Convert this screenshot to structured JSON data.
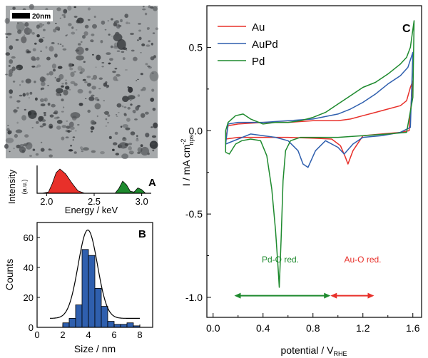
{
  "figure": {
    "tem_image": {
      "scale_bar_label": "20nm"
    },
    "panel_labels": {
      "a": "A",
      "b": "B",
      "c": "C"
    }
  },
  "chart_data": [
    {
      "type": "area",
      "panel": "A",
      "xlabel": "Energy / keV",
      "ylabel": "Intensity",
      "ylabel_unit": "(a.u.)",
      "xlim": [
        1.9,
        3.1
      ],
      "xticks": [
        "2.0",
        "2.5",
        "3.0"
      ],
      "colors": [
        "#e8302a",
        "#1e8a2e"
      ],
      "series": [
        {
          "values": [
            [
              1.95,
              0.0
            ],
            [
              2.02,
              0.05
            ],
            [
              2.06,
              0.4
            ],
            [
              2.1,
              0.85
            ],
            [
              2.14,
              1.0
            ],
            [
              2.2,
              0.8
            ],
            [
              2.27,
              0.4
            ],
            [
              2.33,
              0.1
            ],
            [
              2.4,
              0.0
            ]
          ]
        },
        {
          "values": [
            [
              2.72,
              0.0
            ],
            [
              2.76,
              0.2
            ],
            [
              2.8,
              0.5
            ],
            [
              2.84,
              0.35
            ],
            [
              2.88,
              0.08
            ],
            [
              2.92,
              0.05
            ],
            [
              2.96,
              0.22
            ],
            [
              3.0,
              0.15
            ],
            [
              3.04,
              0.0
            ]
          ]
        }
      ]
    },
    {
      "type": "bar",
      "panel": "B",
      "xlabel": "Size / nm",
      "ylabel": "Counts",
      "xlim": [
        0,
        9
      ],
      "ylim": [
        0,
        70
      ],
      "xticks": [
        "0",
        "2",
        "4",
        "6",
        "8"
      ],
      "yticks": [
        "0",
        "20",
        "40",
        "60"
      ],
      "bar_color": "#2f5fae",
      "bins": [
        2.25,
        2.75,
        3.25,
        3.75,
        4.25,
        4.75,
        5.25,
        5.75,
        6.25,
        6.75,
        7.25,
        7.75
      ],
      "values": [
        3,
        6,
        15,
        52,
        48,
        26,
        14,
        4,
        2,
        2,
        3,
        1
      ],
      "fit": {
        "type": "gaussian",
        "center": 3.95,
        "sigma": 0.75,
        "amplitude": 65,
        "baseline": 6
      }
    },
    {
      "type": "line",
      "panel": "C",
      "xlabel": "potential / V",
      "xlabel_sub": "RHE",
      "ylabel": "I / mA cm",
      "ylabel_sup": "-2",
      "ylabel_sub": "nps",
      "xlim": [
        -0.05,
        1.67
      ],
      "ylim": [
        -1.12,
        0.75
      ],
      "xticks": [
        "0.0",
        "0.4",
        "0.8",
        "1.2",
        "1.6"
      ],
      "yticks": [
        "-1.0",
        "-0.5",
        "0.0",
        "0.5"
      ],
      "legend_position": "top-left",
      "series": [
        {
          "name": "Au",
          "color": "#e8302a",
          "values": [
            [
              0.1,
              -0.05
            ],
            [
              0.2,
              -0.04
            ],
            [
              0.4,
              -0.04
            ],
            [
              0.6,
              -0.04
            ],
            [
              0.8,
              -0.045
            ],
            [
              0.95,
              -0.05
            ],
            [
              1.02,
              -0.09
            ],
            [
              1.06,
              -0.16
            ],
            [
              1.08,
              -0.2
            ],
            [
              1.12,
              -0.12
            ],
            [
              1.2,
              -0.03
            ],
            [
              1.35,
              -0.02
            ],
            [
              1.5,
              -0.01
            ],
            [
              1.57,
              0.0
            ],
            [
              1.6,
              0.3
            ],
            [
              1.58,
              0.26
            ],
            [
              1.55,
              0.18
            ],
            [
              1.5,
              0.15
            ],
            [
              1.4,
              0.13
            ],
            [
              1.3,
              0.11
            ],
            [
              1.2,
              0.09
            ],
            [
              1.1,
              0.07
            ],
            [
              1.0,
              0.06
            ],
            [
              0.8,
              0.06
            ],
            [
              0.6,
              0.05
            ],
            [
              0.4,
              0.05
            ],
            [
              0.2,
              0.04
            ],
            [
              0.12,
              0.03
            ],
            [
              0.1,
              -0.05
            ]
          ]
        },
        {
          "name": "AuPd",
          "color": "#2f5fae",
          "values": [
            [
              0.1,
              -0.08
            ],
            [
              0.2,
              -0.05
            ],
            [
              0.3,
              -0.02
            ],
            [
              0.4,
              -0.03
            ],
            [
              0.5,
              -0.04
            ],
            [
              0.6,
              -0.06
            ],
            [
              0.68,
              -0.12
            ],
            [
              0.72,
              -0.2
            ],
            [
              0.76,
              -0.22
            ],
            [
              0.82,
              -0.12
            ],
            [
              0.9,
              -0.06
            ],
            [
              1.0,
              -0.1
            ],
            [
              1.05,
              -0.14
            ],
            [
              1.12,
              -0.08
            ],
            [
              1.2,
              -0.04
            ],
            [
              1.35,
              -0.03
            ],
            [
              1.5,
              -0.01
            ],
            [
              1.58,
              0.02
            ],
            [
              1.6,
              0.47
            ],
            [
              1.56,
              0.38
            ],
            [
              1.5,
              0.33
            ],
            [
              1.4,
              0.28
            ],
            [
              1.3,
              0.22
            ],
            [
              1.2,
              0.17
            ],
            [
              1.1,
              0.13
            ],
            [
              1.0,
              0.1
            ],
            [
              0.8,
              0.07
            ],
            [
              0.6,
              0.06
            ],
            [
              0.4,
              0.05
            ],
            [
              0.2,
              0.05
            ],
            [
              0.12,
              0.04
            ],
            [
              0.1,
              -0.08
            ]
          ]
        },
        {
          "name": "Pd",
          "color": "#1e8a2e",
          "values": [
            [
              0.1,
              -0.13
            ],
            [
              0.13,
              -0.14
            ],
            [
              0.18,
              -0.08
            ],
            [
              0.23,
              -0.06
            ],
            [
              0.3,
              -0.05
            ],
            [
              0.38,
              -0.06
            ],
            [
              0.43,
              -0.15
            ],
            [
              0.47,
              -0.35
            ],
            [
              0.5,
              -0.6
            ],
            [
              0.52,
              -0.82
            ],
            [
              0.53,
              -0.94
            ],
            [
              0.545,
              -0.65
            ],
            [
              0.56,
              -0.3
            ],
            [
              0.58,
              -0.12
            ],
            [
              0.62,
              -0.06
            ],
            [
              0.7,
              -0.04
            ],
            [
              0.85,
              -0.04
            ],
            [
              1.0,
              -0.04
            ],
            [
              1.2,
              -0.03
            ],
            [
              1.4,
              -0.02
            ],
            [
              1.55,
              -0.01
            ],
            [
              1.6,
              0.2
            ],
            [
              1.61,
              0.66
            ],
            [
              1.58,
              0.5
            ],
            [
              1.55,
              0.44
            ],
            [
              1.5,
              0.4
            ],
            [
              1.4,
              0.34
            ],
            [
              1.3,
              0.29
            ],
            [
              1.2,
              0.26
            ],
            [
              1.1,
              0.21
            ],
            [
              1.0,
              0.16
            ],
            [
              0.9,
              0.11
            ],
            [
              0.8,
              0.08
            ],
            [
              0.7,
              0.06
            ],
            [
              0.6,
              0.05
            ],
            [
              0.5,
              0.05
            ],
            [
              0.4,
              0.04
            ],
            [
              0.3,
              0.07
            ],
            [
              0.24,
              0.1
            ],
            [
              0.18,
              0.09
            ],
            [
              0.12,
              0.05
            ],
            [
              0.1,
              0.0
            ],
            [
              0.1,
              -0.13
            ]
          ]
        }
      ],
      "annotations": [
        {
          "text": "Pd-O red.",
          "x": 0.39,
          "y": -0.79,
          "color": "#1e8a2e",
          "arrow": [
            0.17,
            0.94,
            -0.99
          ]
        },
        {
          "text": "Au-O red.",
          "x": 1.05,
          "y": -0.79,
          "color": "#e8302a",
          "arrow": [
            0.94,
            1.29,
            -0.99
          ]
        }
      ]
    }
  ]
}
